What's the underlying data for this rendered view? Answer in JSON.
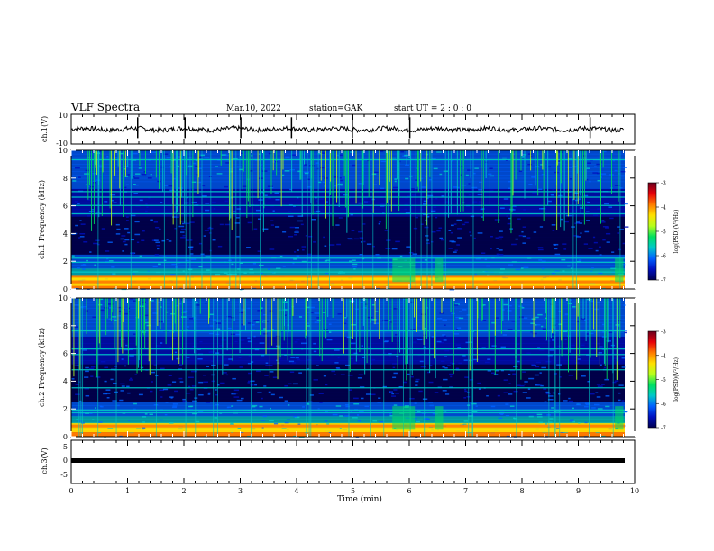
{
  "header": {
    "title": "VLF Spectra",
    "date": "Mar.10, 2022",
    "station": "station=GAK",
    "start": "start UT =  2 : 0  : 0"
  },
  "colorbar": {
    "label": "log(PSD)(V²/Hz)",
    "ticks": [
      "-3",
      "-4",
      "-5",
      "-6",
      "-7"
    ],
    "colors": [
      "#6a001e",
      "#e8000a",
      "#ff7a00",
      "#ffe000",
      "#b6ff1c",
      "#00e060",
      "#00c8c8",
      "#0060ff",
      "#0010c0",
      "#000050"
    ]
  },
  "chart_data": [
    {
      "type": "line",
      "ylabel": "ch.1(V)",
      "yticks": [
        "10",
        "-10"
      ],
      "ylim": [
        -10,
        10
      ],
      "xlim": [
        0,
        10
      ],
      "baseline": 0,
      "spikes_x": [
        1.18,
        2.02,
        3.01,
        3.91,
        4.99,
        6.01,
        9.21
      ]
    },
    {
      "type": "heatmap",
      "ylabel": "ch.1 Frequency (kHz)",
      "yticks": [
        "10",
        "8",
        "6",
        "4",
        "2",
        "0"
      ],
      "ylim": [
        0,
        10
      ],
      "xlim": [
        0,
        10
      ],
      "zlim": [
        -7,
        -3
      ],
      "bands_khz": [
        0.2,
        0.35,
        0.55,
        0.75,
        0.95,
        1.2,
        1.9,
        2.2,
        5.4,
        6.0,
        6.6,
        7.0,
        9.3
      ]
    },
    {
      "type": "heatmap",
      "ylabel": "ch.2 Frequency (kHz)",
      "yticks": [
        "10",
        "8",
        "6",
        "4",
        "2",
        "0"
      ],
      "ylim": [
        0,
        10
      ],
      "xlim": [
        0,
        10
      ],
      "zlim": [
        -7,
        -3
      ],
      "bands_khz": [
        0.2,
        0.45,
        0.8,
        1.7,
        1.9,
        3.5,
        4.8,
        5.9,
        6.3,
        7.6
      ]
    },
    {
      "type": "line",
      "ylabel": "ch.3(V)",
      "yticks": [
        "5",
        "0",
        "-5"
      ],
      "ylim": [
        -5,
        5
      ],
      "xlim": [
        0,
        10
      ],
      "baseline": 0
    }
  ],
  "xaxis": {
    "label": "Time (min)",
    "ticks": [
      "0",
      "1",
      "2",
      "3",
      "4",
      "5",
      "6",
      "7",
      "8",
      "9",
      "10"
    ]
  }
}
